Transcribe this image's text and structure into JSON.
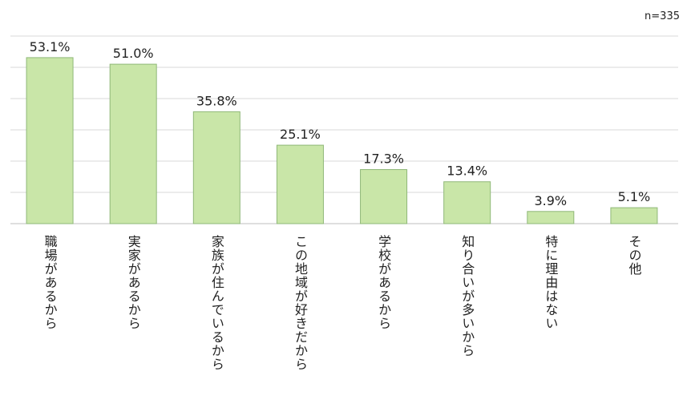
{
  "chart_data": {
    "type": "bar",
    "title": "",
    "xlabel": "",
    "ylabel": "",
    "note": "n=335",
    "categories": [
      "職場があるから",
      "実家があるから",
      "家族が住んでいるから",
      "この地域が好きだから",
      "学校があるから",
      "知り合いが多いから",
      "特に理由はない",
      "その他"
    ],
    "values": [
      53.1,
      51.0,
      35.8,
      25.1,
      17.3,
      13.4,
      3.9,
      5.1
    ],
    "value_labels": [
      "53.1%",
      "51.0%",
      "35.8%",
      "25.1%",
      "17.3%",
      "13.4%",
      "3.9%",
      "5.1%"
    ],
    "ylim": [
      0,
      60
    ],
    "grid": true,
    "legend": "none",
    "colors": {
      "bar_fill": "#c9e6a8",
      "bar_stroke": "#8fb878",
      "grid": "#d9d9d9",
      "axis": "#bfbfbf"
    }
  }
}
